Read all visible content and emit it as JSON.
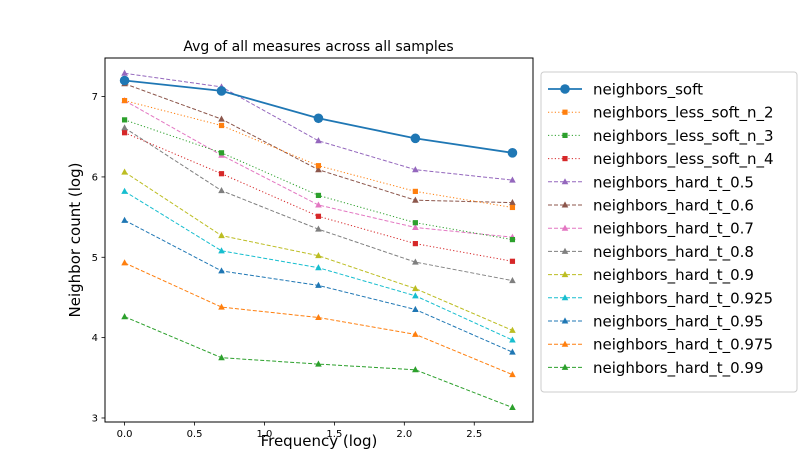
{
  "chart_data": {
    "type": "line",
    "title": "Avg of all measures across all samples",
    "xlabel": "Frequency (log)",
    "ylabel": "Neighbor count (log)",
    "xlim": [
      -0.14,
      2.92
    ],
    "ylim": [
      2.95,
      7.48
    ],
    "xticks": [
      0.0,
      0.5,
      1.0,
      1.5,
      2.0,
      2.5
    ],
    "yticks": [
      3,
      4,
      5,
      6,
      7
    ],
    "grid": false,
    "legend_position": "outside-right",
    "x": [
      0.0,
      0.693,
      1.386,
      2.079,
      2.773
    ],
    "series": [
      {
        "name": "neighbors_soft",
        "values": [
          7.2,
          7.07,
          6.73,
          6.48,
          6.3
        ],
        "color": "#1f77b4",
        "style": "solid",
        "marker": "circle"
      },
      {
        "name": "neighbors_less_soft_n_2",
        "values": [
          6.95,
          6.64,
          6.14,
          5.82,
          5.62
        ],
        "color": "#ff7f0e",
        "style": "dotted",
        "marker": "square"
      },
      {
        "name": "neighbors_less_soft_n_3",
        "values": [
          6.71,
          6.3,
          5.77,
          5.43,
          5.22
        ],
        "color": "#2ca02c",
        "style": "dotted",
        "marker": "square"
      },
      {
        "name": "neighbors_less_soft_n_4",
        "values": [
          6.55,
          6.04,
          5.51,
          5.17,
          4.95
        ],
        "color": "#d62728",
        "style": "dotted",
        "marker": "square"
      },
      {
        "name": "neighbors_hard_t_0.5",
        "values": [
          7.29,
          7.12,
          6.45,
          6.09,
          5.96
        ],
        "color": "#9467bd",
        "style": "dashed",
        "marker": "triangle"
      },
      {
        "name": "neighbors_hard_t_0.6",
        "values": [
          7.16,
          6.72,
          6.09,
          5.71,
          5.68
        ],
        "color": "#8c564b",
        "style": "dashed",
        "marker": "triangle"
      },
      {
        "name": "neighbors_hard_t_0.7",
        "values": [
          6.95,
          6.27,
          5.65,
          5.37,
          5.25
        ],
        "color": "#e377c2",
        "style": "dashed",
        "marker": "triangle"
      },
      {
        "name": "neighbors_hard_t_0.8",
        "values": [
          6.61,
          5.83,
          5.35,
          4.94,
          4.71
        ],
        "color": "#7f7f7f",
        "style": "dashed",
        "marker": "triangle"
      },
      {
        "name": "neighbors_hard_t_0.9",
        "values": [
          6.06,
          5.27,
          5.02,
          4.61,
          4.09
        ],
        "color": "#bcbd22",
        "style": "dashed",
        "marker": "triangle"
      },
      {
        "name": "neighbors_hard_t_0.925",
        "values": [
          5.82,
          5.08,
          4.87,
          4.52,
          3.97
        ],
        "color": "#17becf",
        "style": "dashed",
        "marker": "triangle"
      },
      {
        "name": "neighbors_hard_t_0.95",
        "values": [
          5.46,
          4.83,
          4.65,
          4.35,
          3.82
        ],
        "color": "#1f77b4",
        "style": "dashed",
        "marker": "triangle"
      },
      {
        "name": "neighbors_hard_t_0.975",
        "values": [
          4.93,
          4.38,
          4.25,
          4.04,
          3.54
        ],
        "color": "#ff7f0e",
        "style": "dashed",
        "marker": "triangle"
      },
      {
        "name": "neighbors_hard_t_0.99",
        "values": [
          4.26,
          3.75,
          3.67,
          3.6,
          3.13
        ],
        "color": "#2ca02c",
        "style": "dashed",
        "marker": "triangle"
      }
    ]
  }
}
